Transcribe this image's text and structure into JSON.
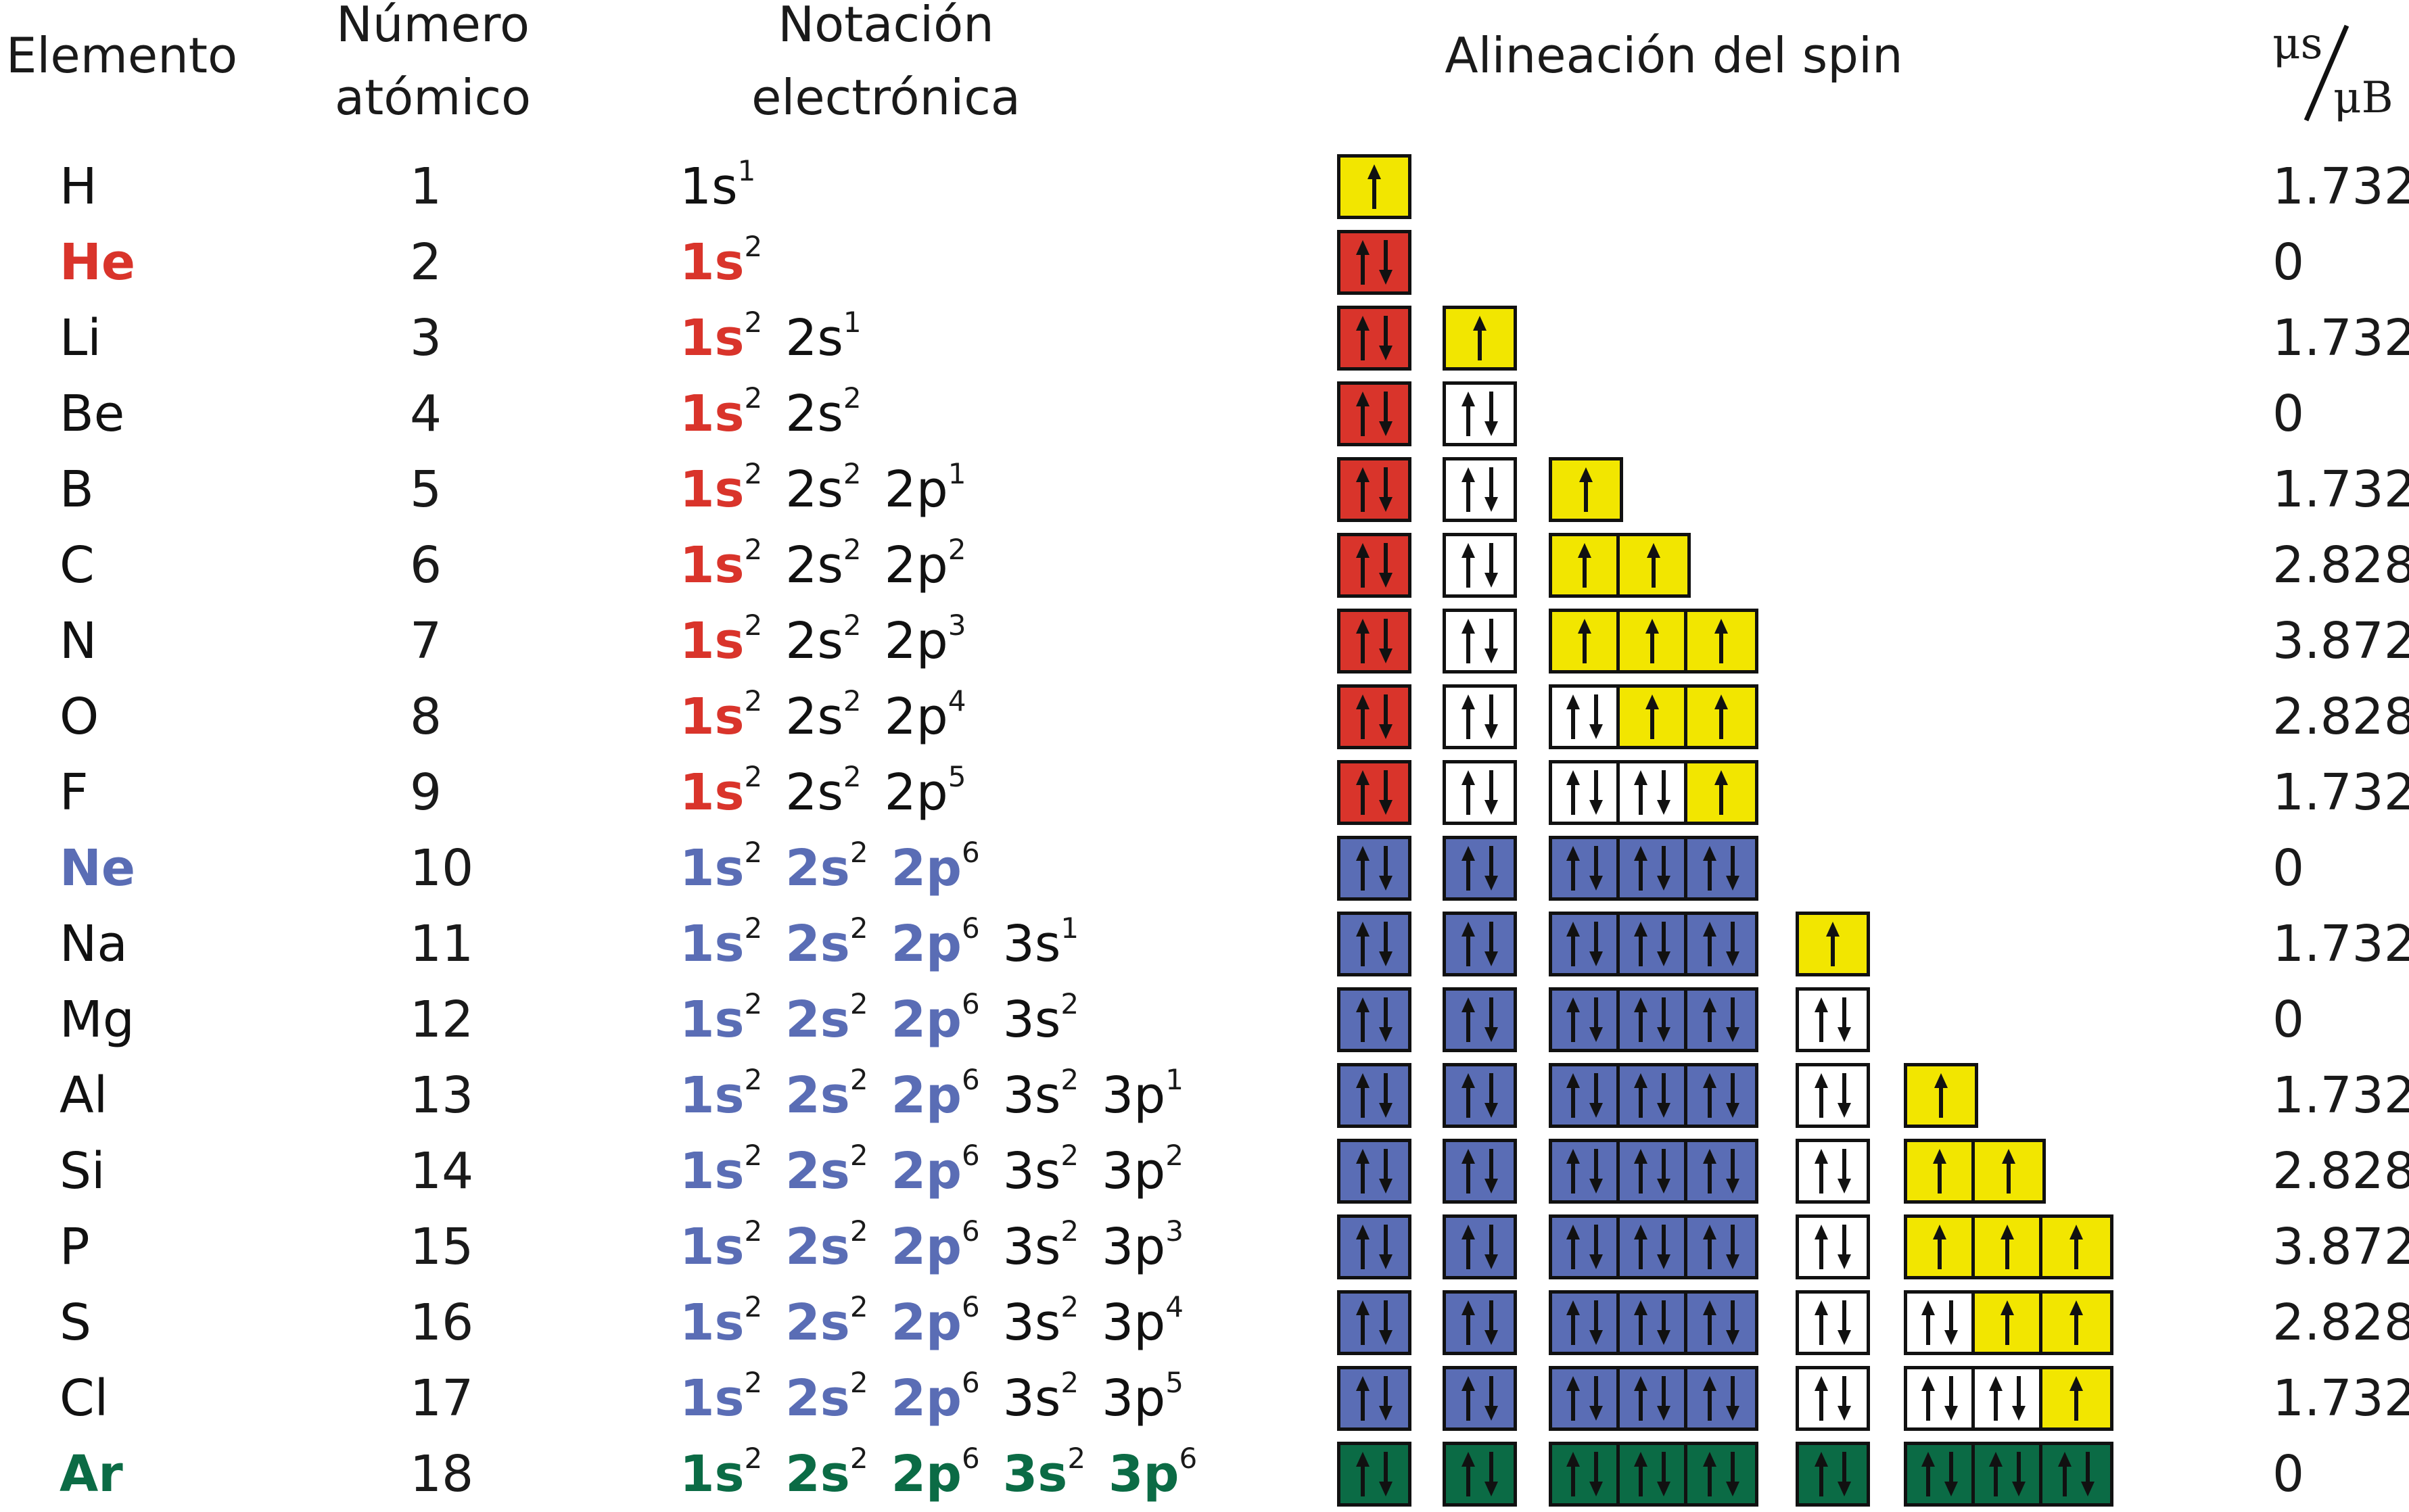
{
  "headers": {
    "element": "Elemento",
    "atomic_number": "Número atómico",
    "notation": "Notación electrónica",
    "spin": "Alineación del spin",
    "ratio_num": "μs",
    "ratio_den": "μB"
  },
  "colors": {
    "red": "#d9342b",
    "blue": "#5a6db5",
    "green": "#0b6b45",
    "yellow": "#f2e600",
    "white": "#ffffff",
    "black": "#111111"
  },
  "rows": [
    {
      "element": "H",
      "z": "1",
      "notation": [
        {
          "o": "1s",
          "e": "1",
          "c": "black"
        }
      ],
      "spin": [
        [
          "u"
        ]
      ],
      "spin_colors": [
        "yellow"
      ],
      "ratio": "1.732",
      "elem_color": "black"
    },
    {
      "element": "He",
      "z": "2",
      "notation": [
        {
          "o": "1s",
          "e": "2",
          "c": "red"
        }
      ],
      "spin": [
        [
          "ud"
        ]
      ],
      "spin_colors": [
        "red"
      ],
      "ratio": "0",
      "elem_color": "red"
    },
    {
      "element": "Li",
      "z": "3",
      "notation": [
        {
          "o": "1s",
          "e": "2",
          "c": "red"
        },
        {
          "o": "2s",
          "e": "1",
          "c": "black"
        }
      ],
      "spin": [
        [
          "ud"
        ],
        [
          "u"
        ]
      ],
      "spin_colors": [
        "red",
        "yellow"
      ],
      "ratio": "1.732",
      "elem_color": "black"
    },
    {
      "element": "Be",
      "z": "4",
      "notation": [
        {
          "o": "1s",
          "e": "2",
          "c": "red"
        },
        {
          "o": "2s",
          "e": "2",
          "c": "black"
        }
      ],
      "spin": [
        [
          "ud"
        ],
        [
          "ud"
        ]
      ],
      "spin_colors": [
        "red",
        "white"
      ],
      "ratio": "0",
      "elem_color": "black"
    },
    {
      "element": "B",
      "z": "5",
      "notation": [
        {
          "o": "1s",
          "e": "2",
          "c": "red"
        },
        {
          "o": "2s",
          "e": "2",
          "c": "black"
        },
        {
          "o": "2p",
          "e": "1",
          "c": "black"
        }
      ],
      "spin": [
        [
          "ud"
        ],
        [
          "ud"
        ],
        [
          "u"
        ]
      ],
      "spin_colors": [
        "red",
        "white",
        "yellow"
      ],
      "ratio": "1.732",
      "elem_color": "black"
    },
    {
      "element": "C",
      "z": "6",
      "notation": [
        {
          "o": "1s",
          "e": "2",
          "c": "red"
        },
        {
          "o": "2s",
          "e": "2",
          "c": "black"
        },
        {
          "o": "2p",
          "e": "2",
          "c": "black"
        }
      ],
      "spin": [
        [
          "ud"
        ],
        [
          "ud"
        ],
        [
          "u",
          "u"
        ]
      ],
      "spin_colors": [
        "red",
        "white",
        "yellow"
      ],
      "ratio": "2.828",
      "elem_color": "black"
    },
    {
      "element": "N",
      "z": "7",
      "notation": [
        {
          "o": "1s",
          "e": "2",
          "c": "red"
        },
        {
          "o": "2s",
          "e": "2",
          "c": "black"
        },
        {
          "o": "2p",
          "e": "3",
          "c": "black"
        }
      ],
      "spin": [
        [
          "ud"
        ],
        [
          "ud"
        ],
        [
          "u",
          "u",
          "u"
        ]
      ],
      "spin_colors": [
        "red",
        "white",
        "yellow"
      ],
      "ratio": "3.872",
      "elem_color": "black"
    },
    {
      "element": "O",
      "z": "8",
      "notation": [
        {
          "o": "1s",
          "e": "2",
          "c": "red"
        },
        {
          "o": "2s",
          "e": "2",
          "c": "black"
        },
        {
          "o": "2p",
          "e": "4",
          "c": "black"
        }
      ],
      "spin": [
        [
          "ud"
        ],
        [
          "ud"
        ],
        [
          "ud",
          "u",
          "u"
        ]
      ],
      "spin_colors": [
        "red",
        "white",
        "mixed1"
      ],
      "ratio": "2.828",
      "elem_color": "black"
    },
    {
      "element": "F",
      "z": "9",
      "notation": [
        {
          "o": "1s",
          "e": "2",
          "c": "red"
        },
        {
          "o": "2s",
          "e": "2",
          "c": "black"
        },
        {
          "o": "2p",
          "e": "5",
          "c": "black"
        }
      ],
      "spin": [
        [
          "ud"
        ],
        [
          "ud"
        ],
        [
          "ud",
          "ud",
          "u"
        ]
      ],
      "spin_colors": [
        "red",
        "white",
        "mixed2"
      ],
      "ratio": "1.732",
      "elem_color": "black"
    },
    {
      "element": "Ne",
      "z": "10",
      "notation": [
        {
          "o": "1s",
          "e": "2",
          "c": "blue"
        },
        {
          "o": "2s",
          "e": "2",
          "c": "blue"
        },
        {
          "o": "2p",
          "e": "6",
          "c": "blue"
        }
      ],
      "spin": [
        [
          "ud"
        ],
        [
          "ud"
        ],
        [
          "ud",
          "ud",
          "ud"
        ]
      ],
      "spin_colors": [
        "blue",
        "blue",
        "blue"
      ],
      "ratio": "0",
      "elem_color": "blue"
    },
    {
      "element": "Na",
      "z": "11",
      "notation": [
        {
          "o": "1s",
          "e": "2",
          "c": "blue"
        },
        {
          "o": "2s",
          "e": "2",
          "c": "blue"
        },
        {
          "o": "2p",
          "e": "6",
          "c": "blue"
        },
        {
          "o": "3s",
          "e": "1",
          "c": "black"
        }
      ],
      "spin": [
        [
          "ud"
        ],
        [
          "ud"
        ],
        [
          "ud",
          "ud",
          "ud"
        ],
        [
          "u"
        ]
      ],
      "spin_colors": [
        "blue",
        "blue",
        "blue",
        "yellow"
      ],
      "ratio": "1.732",
      "elem_color": "black"
    },
    {
      "element": "Mg",
      "z": "12",
      "notation": [
        {
          "o": "1s",
          "e": "2",
          "c": "blue"
        },
        {
          "o": "2s",
          "e": "2",
          "c": "blue"
        },
        {
          "o": "2p",
          "e": "6",
          "c": "blue"
        },
        {
          "o": "3s",
          "e": "2",
          "c": "black"
        }
      ],
      "spin": [
        [
          "ud"
        ],
        [
          "ud"
        ],
        [
          "ud",
          "ud",
          "ud"
        ],
        [
          "ud"
        ]
      ],
      "spin_colors": [
        "blue",
        "blue",
        "blue",
        "white"
      ],
      "ratio": "0",
      "elem_color": "black"
    },
    {
      "element": "Al",
      "z": "13",
      "notation": [
        {
          "o": "1s",
          "e": "2",
          "c": "blue"
        },
        {
          "o": "2s",
          "e": "2",
          "c": "blue"
        },
        {
          "o": "2p",
          "e": "6",
          "c": "blue"
        },
        {
          "o": "3s",
          "e": "2",
          "c": "black"
        },
        {
          "o": "3p",
          "e": "1",
          "c": "black"
        }
      ],
      "spin": [
        [
          "ud"
        ],
        [
          "ud"
        ],
        [
          "ud",
          "ud",
          "ud"
        ],
        [
          "ud"
        ],
        [
          "u"
        ]
      ],
      "spin_colors": [
        "blue",
        "blue",
        "blue",
        "white",
        "yellow"
      ],
      "ratio": "1.732",
      "elem_color": "black"
    },
    {
      "element": "Si",
      "z": "14",
      "notation": [
        {
          "o": "1s",
          "e": "2",
          "c": "blue"
        },
        {
          "o": "2s",
          "e": "2",
          "c": "blue"
        },
        {
          "o": "2p",
          "e": "6",
          "c": "blue"
        },
        {
          "o": "3s",
          "e": "2",
          "c": "black"
        },
        {
          "o": "3p",
          "e": "2",
          "c": "black"
        }
      ],
      "spin": [
        [
          "ud"
        ],
        [
          "ud"
        ],
        [
          "ud",
          "ud",
          "ud"
        ],
        [
          "ud"
        ],
        [
          "u",
          "u"
        ]
      ],
      "spin_colors": [
        "blue",
        "blue",
        "blue",
        "white",
        "yellow"
      ],
      "ratio": "2.828",
      "elem_color": "black"
    },
    {
      "element": "P",
      "z": "15",
      "notation": [
        {
          "o": "1s",
          "e": "2",
          "c": "blue"
        },
        {
          "o": "2s",
          "e": "2",
          "c": "blue"
        },
        {
          "o": "2p",
          "e": "6",
          "c": "blue"
        },
        {
          "o": "3s",
          "e": "2",
          "c": "black"
        },
        {
          "o": "3p",
          "e": "3",
          "c": "black"
        }
      ],
      "spin": [
        [
          "ud"
        ],
        [
          "ud"
        ],
        [
          "ud",
          "ud",
          "ud"
        ],
        [
          "ud"
        ],
        [
          "u",
          "u",
          "u"
        ]
      ],
      "spin_colors": [
        "blue",
        "blue",
        "blue",
        "white",
        "yellow"
      ],
      "ratio": "3.872",
      "elem_color": "black"
    },
    {
      "element": "S",
      "z": "16",
      "notation": [
        {
          "o": "1s",
          "e": "2",
          "c": "blue"
        },
        {
          "o": "2s",
          "e": "2",
          "c": "blue"
        },
        {
          "o": "2p",
          "e": "6",
          "c": "blue"
        },
        {
          "o": "3s",
          "e": "2",
          "c": "black"
        },
        {
          "o": "3p",
          "e": "4",
          "c": "black"
        }
      ],
      "spin": [
        [
          "ud"
        ],
        [
          "ud"
        ],
        [
          "ud",
          "ud",
          "ud"
        ],
        [
          "ud"
        ],
        [
          "ud",
          "u",
          "u"
        ]
      ],
      "spin_colors": [
        "blue",
        "blue",
        "blue",
        "white",
        "mixed1"
      ],
      "ratio": "2.828",
      "elem_color": "black"
    },
    {
      "element": "Cl",
      "z": "17",
      "notation": [
        {
          "o": "1s",
          "e": "2",
          "c": "blue"
        },
        {
          "o": "2s",
          "e": "2",
          "c": "blue"
        },
        {
          "o": "2p",
          "e": "6",
          "c": "blue"
        },
        {
          "o": "3s",
          "e": "2",
          "c": "black"
        },
        {
          "o": "3p",
          "e": "5",
          "c": "black"
        }
      ],
      "spin": [
        [
          "ud"
        ],
        [
          "ud"
        ],
        [
          "ud",
          "ud",
          "ud"
        ],
        [
          "ud"
        ],
        [
          "ud",
          "ud",
          "u"
        ]
      ],
      "spin_colors": [
        "blue",
        "blue",
        "blue",
        "white",
        "mixed2"
      ],
      "ratio": "1.732",
      "elem_color": "black"
    },
    {
      "element": "Ar",
      "z": "18",
      "notation": [
        {
          "o": "1s",
          "e": "2",
          "c": "green"
        },
        {
          "o": "2s",
          "e": "2",
          "c": "green"
        },
        {
          "o": "2p",
          "e": "6",
          "c": "green"
        },
        {
          "o": "3s",
          "e": "2",
          "c": "green"
        },
        {
          "o": "3p",
          "e": "6",
          "c": "green"
        }
      ],
      "spin": [
        [
          "ud"
        ],
        [
          "ud"
        ],
        [
          "ud",
          "ud",
          "ud"
        ],
        [
          "ud"
        ],
        [
          "ud",
          "ud",
          "ud"
        ]
      ],
      "spin_colors": [
        "green",
        "green",
        "green",
        "green",
        "green"
      ],
      "ratio": "0",
      "elem_color": "green"
    }
  ]
}
